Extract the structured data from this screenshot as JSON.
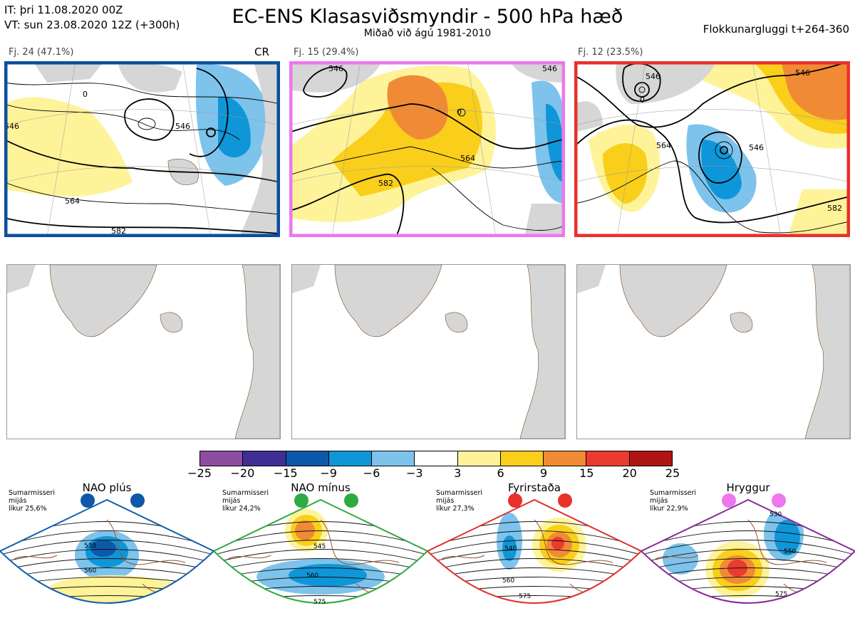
{
  "header": {
    "init_time": "IT: þri 11.08.2020 00Z",
    "valid_time": "VT: sun 23.08.2020 12Z  (+300h)",
    "title": "EC-ENS Klasasviðsmyndir - 500 hPa hæð",
    "subtitle": "Miðað við ágú 1981-2010",
    "window": "Flokkunargluggi t+264-360"
  },
  "colors": {
    "land": "#d6d6d6",
    "coast": "#7a4a1e",
    "panel1_border": "#0b4f9e",
    "panel2_border": "#ee77ee",
    "panel3_border": "#e8312a",
    "nao_plus_border": "#1060b0",
    "nao_minus_border": "#2faa40",
    "blocking_border": "#e03030",
    "ridge_border": "#8a2a9a"
  },
  "clusters": [
    {
      "label": "Fj. 24 (47.1%)",
      "tag": "CR",
      "contours": [
        "546",
        "546",
        "564",
        "582",
        "0"
      ]
    },
    {
      "label": "Fj. 15 (29.4%)",
      "tag": "",
      "contours": [
        "546",
        "564",
        "582",
        "546",
        "0"
      ]
    },
    {
      "label": "Fj. 12 (23.5%)",
      "tag": "",
      "contours": [
        "546",
        "564",
        "582",
        "546",
        "546",
        "0"
      ]
    }
  ],
  "chart_data": {
    "type": "heatmap",
    "title": "EC-ENS Klasasviðsmyndir - 500 hPa hæð",
    "colorbar": {
      "ticks": [
        "−25",
        "−20",
        "−15",
        "−9",
        "−6",
        "−3",
        "3",
        "6",
        "9",
        "15",
        "20",
        "25"
      ],
      "bins": [
        {
          "from": -25,
          "to": -20,
          "color": "#8e4ea0"
        },
        {
          "from": -20,
          "to": -15,
          "color": "#3f2f95"
        },
        {
          "from": -15,
          "to": -9,
          "color": "#0d58a8"
        },
        {
          "from": -9,
          "to": -6,
          "color": "#0f96d8"
        },
        {
          "from": -6,
          "to": -3,
          "color": "#7dc3ec"
        },
        {
          "from": -3,
          "to": 3,
          "color": "#ffffff"
        },
        {
          "from": 3,
          "to": 6,
          "color": "#fff39a"
        },
        {
          "from": 6,
          "to": 9,
          "color": "#f9cf1c"
        },
        {
          "from": 9,
          "to": 15,
          "color": "#f18a35"
        },
        {
          "from": 15,
          "to": 20,
          "color": "#eb3a2f"
        },
        {
          "from": 20,
          "to": 25,
          "color": "#b01515"
        }
      ]
    },
    "clusters": [
      {
        "name": "Fj. 24",
        "probability_pct": 47.1
      },
      {
        "name": "Fj. 15",
        "probability_pct": 29.4
      },
      {
        "name": "Fj. 12",
        "probability_pct": 23.5
      }
    ]
  },
  "regimes": [
    {
      "name": "NAO plús",
      "season": "Sumarmisseri",
      "desc": "mijás",
      "prob": "líkur 25,6%",
      "dot_color": "#0d58a8",
      "contours": [
        "535",
        "560"
      ]
    },
    {
      "name": "NAO mínus",
      "season": "Sumarmisseri",
      "desc": "mijás",
      "prob": "líkur 24,2%",
      "dot_color": "#2faa40",
      "contours": [
        "545",
        "560",
        "575"
      ]
    },
    {
      "name": "Fyrirstaða",
      "season": "Sumarmisseri",
      "desc": "mijás",
      "prob": "líkur 27,3%",
      "dot_color": "#e8312a",
      "contours": [
        "540",
        "560",
        "575"
      ]
    },
    {
      "name": "Hryggur",
      "season": "Sumarmisseri",
      "desc": "mijás",
      "prob": "líkur 22,9%",
      "dot_color": "#ee77ee",
      "contours": [
        "530",
        "550",
        "575"
      ]
    }
  ]
}
